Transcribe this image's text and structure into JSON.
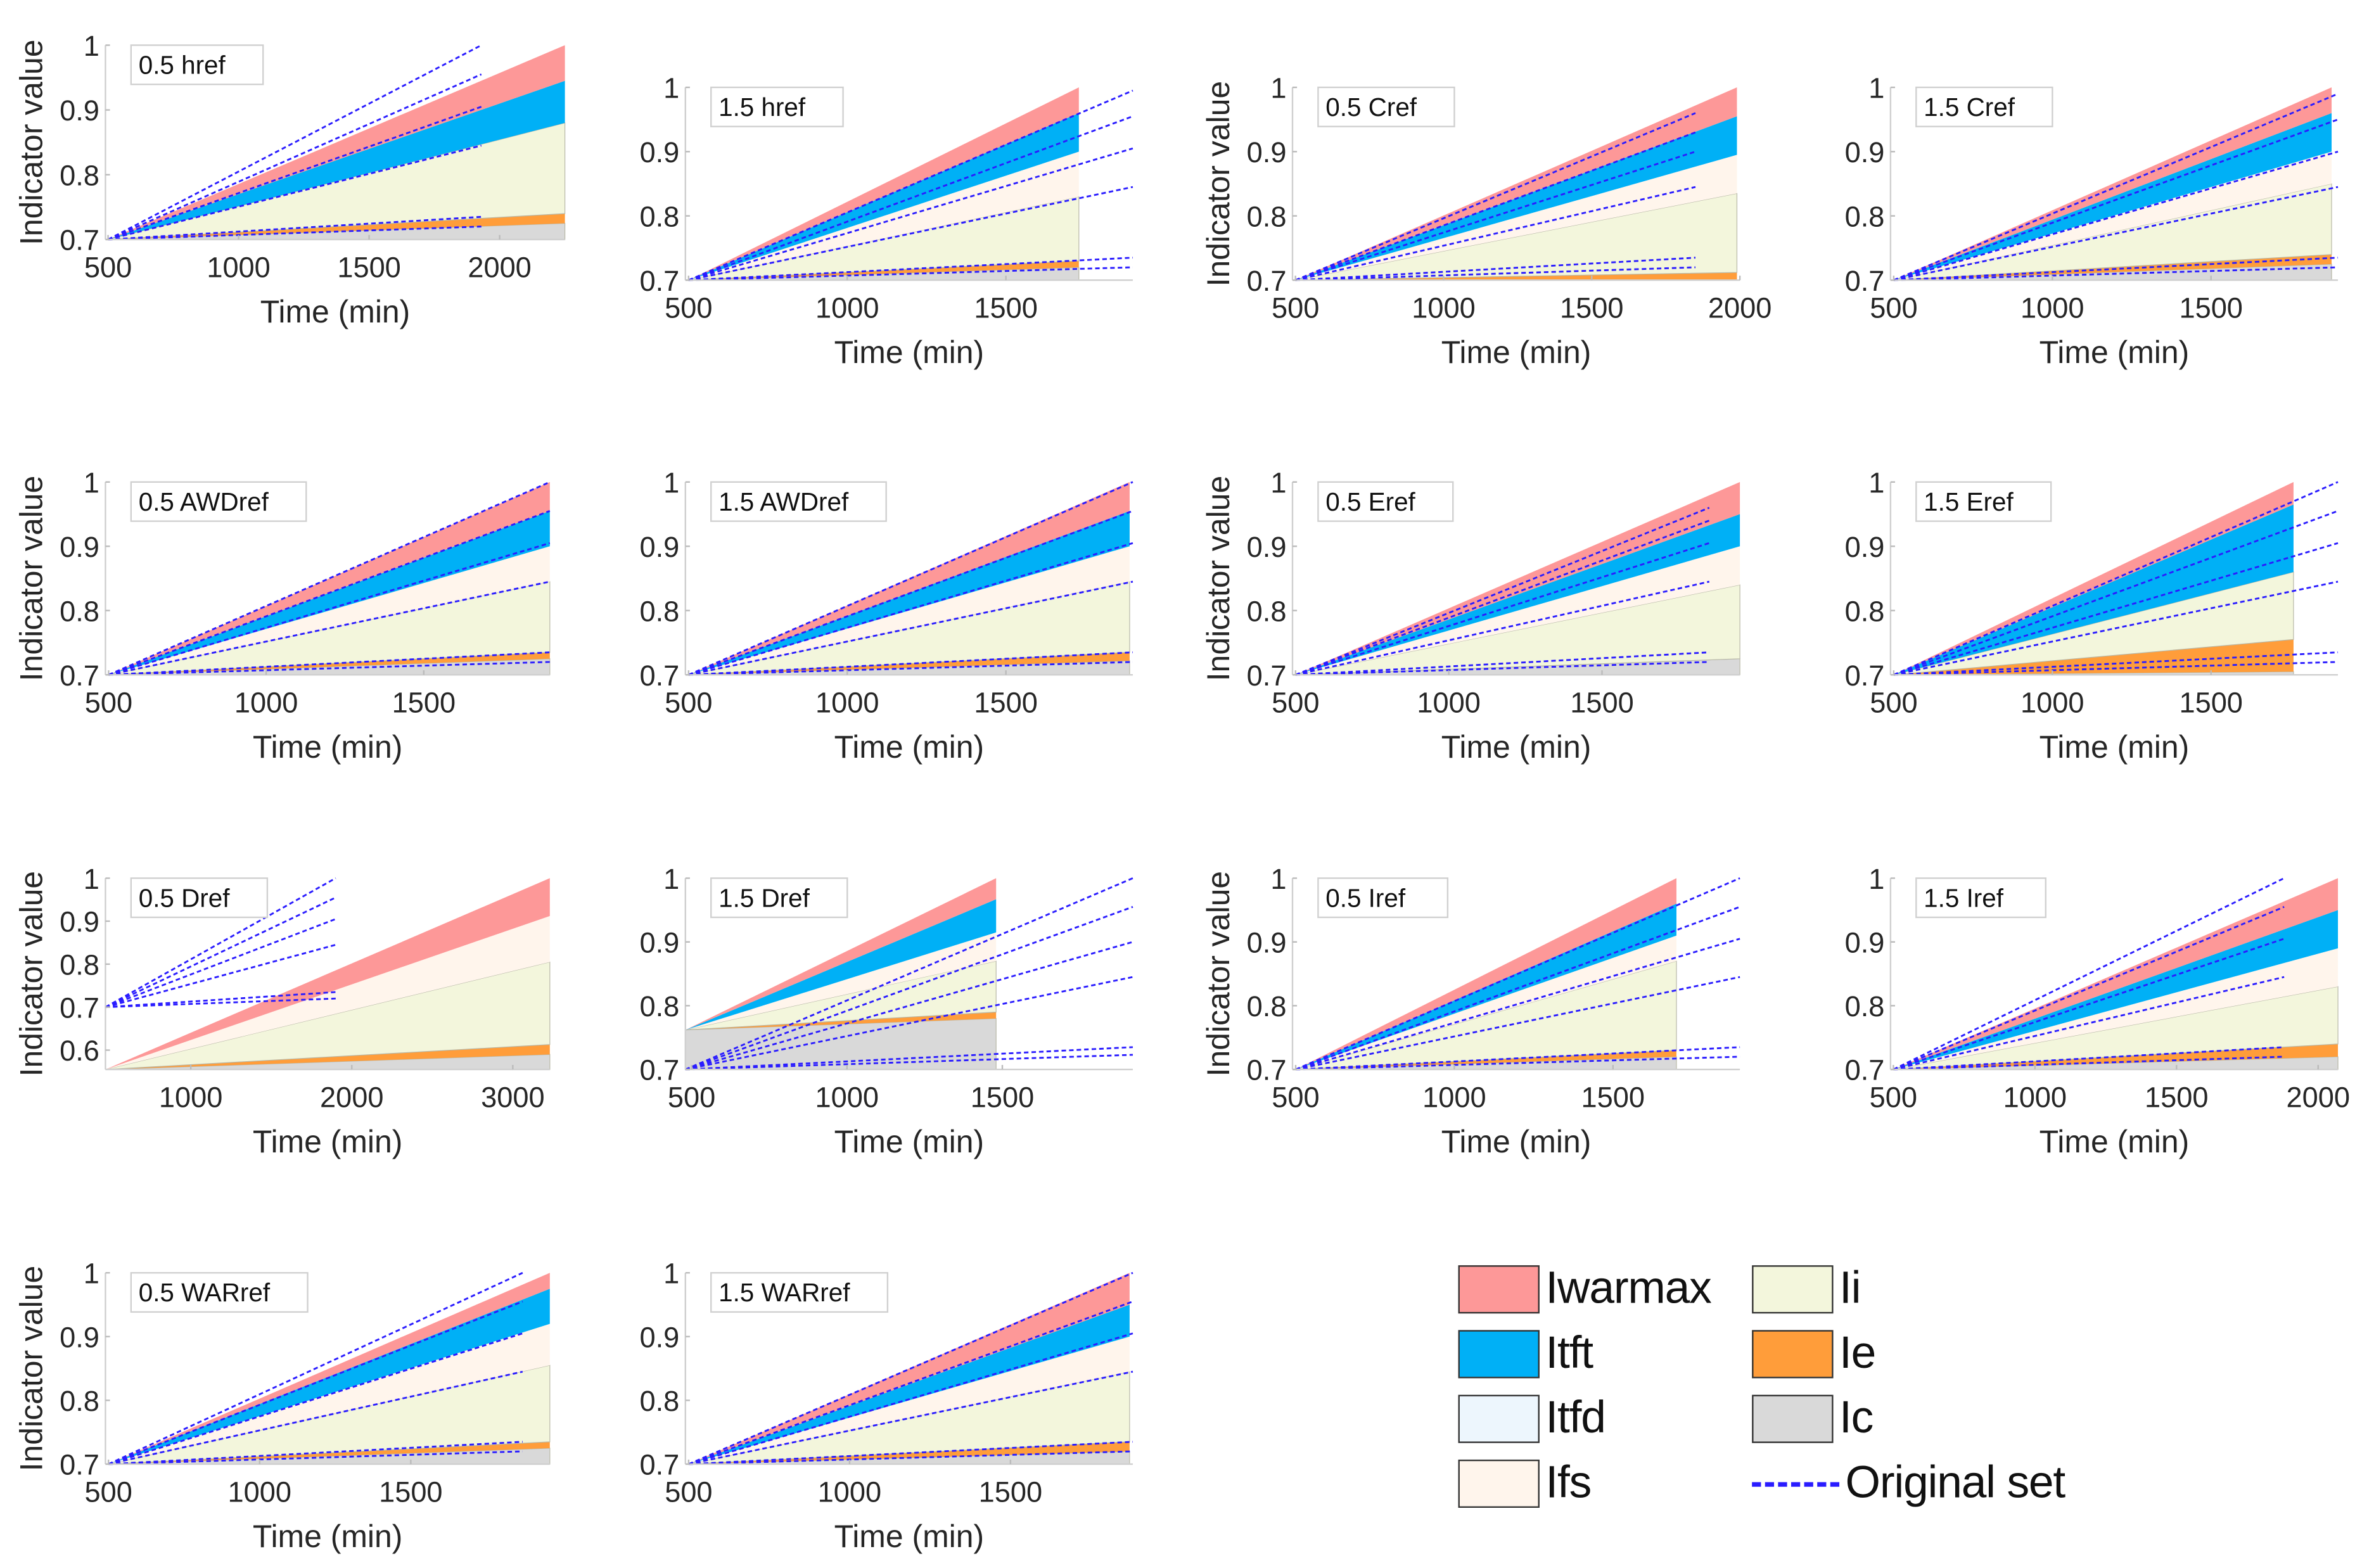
{
  "chart_data": {
    "type": "area",
    "title": "",
    "xlabel": "Time (min)",
    "ylabel": "Indicator value",
    "layers": [
      "Ic",
      "Ie",
      "Ii",
      "Ifs",
      "Itfd",
      "Itft",
      "Iwarmax"
    ],
    "colors": {
      "Iwarmax": "#fd9898",
      "Itft": "#00b0f6",
      "Itfd": "#edf6fd",
      "Ifs": "#fff5ec",
      "Ii": "#f3f6dc",
      "Ie": "#ff9d3a",
      "Ic": "#d9d9d9",
      "Original set": "#2a1cff"
    },
    "legend": {
      "placement": "bottom-right",
      "items": [
        {
          "label": "Iwarmax",
          "key": "Iwarmax"
        },
        {
          "label": "Itft",
          "key": "Itft"
        },
        {
          "label": "Itfd",
          "key": "Itfd"
        },
        {
          "label": "Ifs",
          "key": "Ifs"
        },
        {
          "label": "Ii",
          "key": "Ii"
        },
        {
          "label": "Ie",
          "key": "Ie"
        },
        {
          "label": "Ic",
          "key": "Ic"
        },
        {
          "label": "Original set",
          "key": "Original set"
        }
      ]
    },
    "panels": [
      {
        "title": "0.5 href",
        "show_ylabel": true,
        "xlim": [
          490,
          2250
        ],
        "ylim": [
          0.7,
          1
        ],
        "xticks": [
          "500",
          "1000",
          "1500",
          "2000"
        ],
        "yticks": [
          "0.7",
          "0.8",
          "0.9",
          "1"
        ],
        "start": [
          500,
          0.7
        ],
        "end_time": 2250,
        "tops": {
          "Ic": 0.725,
          "Ie": 0.74,
          "Ii": 0.88,
          "Ifs": 0.88,
          "Itfd": 0.88,
          "Itft": 0.945,
          "Iwarmax": 1.0
        },
        "original_set": {
          "start": [
            500,
            0.7
          ],
          "end_time": 1930,
          "end_values": [
            1.0,
            0.955,
            0.905,
            0.845,
            0.735,
            0.72
          ]
        }
      },
      {
        "title": "1.5 href",
        "show_ylabel": false,
        "xlim": [
          490,
          1900
        ],
        "ylim": [
          0.7,
          1
        ],
        "xticks": [
          "500",
          "1000",
          "1500"
        ],
        "yticks": [
          "0.7",
          "0.8",
          "0.9",
          "1"
        ],
        "start": [
          500,
          0.7
        ],
        "end_time": 1730,
        "tops": {
          "Ic": 0.72,
          "Ie": 0.73,
          "Ii": 0.83,
          "Ifs": 0.9,
          "Itfd": 0.9,
          "Itft": 0.96,
          "Iwarmax": 1.0
        },
        "original_set": {
          "start": [
            500,
            0.7
          ],
          "end_time": 1900,
          "end_values": [
            0.995,
            0.955,
            0.905,
            0.845,
            0.735,
            0.72
          ]
        }
      },
      {
        "title": "0.5 Cref",
        "show_ylabel": true,
        "xlim": [
          490,
          2000
        ],
        "ylim": [
          0.7,
          1
        ],
        "xticks": [
          "500",
          "1000",
          "1500",
          "2000"
        ],
        "yticks": [
          "0.7",
          "0.8",
          "0.9",
          "1"
        ],
        "start": [
          500,
          0.7
        ],
        "end_time": 1990,
        "tops": {
          "Ic": 0.7,
          "Ie": 0.712,
          "Ii": 0.835,
          "Ifs": 0.895,
          "Itfd": 0.895,
          "Itft": 0.955,
          "Iwarmax": 1.0
        },
        "original_set": {
          "start": [
            500,
            0.7
          ],
          "end_time": 1850,
          "end_values": [
            0.96,
            0.93,
            0.9,
            0.845,
            0.735,
            0.72
          ]
        }
      },
      {
        "title": "1.5 Cref",
        "show_ylabel": false,
        "xlim": [
          490,
          1900
        ],
        "ylim": [
          0.7,
          1
        ],
        "xticks": [
          "500",
          "1000",
          "1500"
        ],
        "yticks": [
          "0.7",
          "0.8",
          "0.9",
          "1"
        ],
        "start": [
          500,
          0.7
        ],
        "end_time": 1880,
        "tops": {
          "Ic": 0.725,
          "Ie": 0.74,
          "Ii": 0.85,
          "Ifs": 0.9,
          "Itfd": 0.9,
          "Itft": 0.96,
          "Iwarmax": 1.0
        },
        "original_set": {
          "start": [
            500,
            0.7
          ],
          "end_time": 1900,
          "end_values": [
            0.99,
            0.95,
            0.9,
            0.845,
            0.735,
            0.72
          ]
        }
      },
      {
        "title": "0.5 AWDref",
        "show_ylabel": true,
        "xlim": [
          490,
          1900
        ],
        "ylim": [
          0.7,
          1
        ],
        "xticks": [
          "500",
          "1000",
          "1500"
        ],
        "yticks": [
          "0.7",
          "0.8",
          "0.9",
          "1"
        ],
        "start": [
          500,
          0.7
        ],
        "end_time": 1900,
        "tops": {
          "Ic": 0.725,
          "Ie": 0.735,
          "Ii": 0.845,
          "Ifs": 0.9,
          "Itfd": 0.9,
          "Itft": 0.955,
          "Iwarmax": 1.0
        },
        "original_set": {
          "start": [
            500,
            0.7
          ],
          "end_time": 1900,
          "end_values": [
            1.0,
            0.955,
            0.905,
            0.845,
            0.735,
            0.72
          ]
        }
      },
      {
        "title": "1.5 AWDref",
        "show_ylabel": false,
        "xlim": [
          490,
          1900
        ],
        "ylim": [
          0.7,
          1
        ],
        "xticks": [
          "500",
          "1000",
          "1500"
        ],
        "yticks": [
          "0.7",
          "0.8",
          "0.9",
          "1"
        ],
        "start": [
          500,
          0.7
        ],
        "end_time": 1890,
        "tops": {
          "Ic": 0.722,
          "Ie": 0.735,
          "Ii": 0.845,
          "Ifs": 0.9,
          "Itfd": 0.9,
          "Itft": 0.955,
          "Iwarmax": 1.0
        },
        "original_set": {
          "start": [
            500,
            0.7
          ],
          "end_time": 1900,
          "end_values": [
            1.0,
            0.955,
            0.905,
            0.845,
            0.735,
            0.72
          ]
        }
      },
      {
        "title": "0.5 Eref",
        "show_ylabel": true,
        "xlim": [
          490,
          1950
        ],
        "ylim": [
          0.7,
          1
        ],
        "xticks": [
          "500",
          "1000",
          "1500"
        ],
        "yticks": [
          "0.7",
          "0.8",
          "0.9",
          "1"
        ],
        "start": [
          500,
          0.7
        ],
        "end_time": 1950,
        "tops": {
          "Ic": 0.725,
          "Ie": 0.725,
          "Ii": 0.84,
          "Ifs": 0.9,
          "Itfd": 0.9,
          "Itft": 0.95,
          "Iwarmax": 1.0
        },
        "original_set": {
          "start": [
            500,
            0.7
          ],
          "end_time": 1850,
          "end_values": [
            0.96,
            0.94,
            0.905,
            0.845,
            0.735,
            0.72
          ]
        }
      },
      {
        "title": "1.5 Eref",
        "show_ylabel": false,
        "xlim": [
          490,
          1900
        ],
        "ylim": [
          0.7,
          1
        ],
        "xticks": [
          "500",
          "1000",
          "1500"
        ],
        "yticks": [
          "0.7",
          "0.8",
          "0.9",
          "1"
        ],
        "start": [
          500,
          0.7
        ],
        "end_time": 1760,
        "tops": {
          "Ic": 0.705,
          "Ie": 0.755,
          "Ii": 0.86,
          "Ifs": 0.86,
          "Itfd": 0.86,
          "Itft": 0.965,
          "Iwarmax": 1.0
        },
        "original_set": {
          "start": [
            500,
            0.7
          ],
          "end_time": 1900,
          "end_values": [
            1.0,
            0.955,
            0.905,
            0.845,
            0.735,
            0.72
          ]
        }
      },
      {
        "title": "0.5 Dref",
        "show_ylabel": true,
        "xlim": [
          470,
          3230
        ],
        "ylim": [
          0.555,
          1
        ],
        "xticks": [
          "1000",
          "2000",
          "3000"
        ],
        "yticks": [
          "0.6",
          "0.7",
          "0.8",
          "0.9",
          "1"
        ],
        "start": [
          470,
          0.555
        ],
        "end_time": 3230,
        "tops": {
          "Ic": 0.59,
          "Ie": 0.613,
          "Ii": 0.805,
          "Ifs": 0.912,
          "Itfd": 0.912,
          "Itft": 0.912,
          "Iwarmax": 1.0
        },
        "original_set": {
          "start": [
            470,
            0.7
          ],
          "end_time": 1900,
          "end_values": [
            1.0,
            0.955,
            0.905,
            0.845,
            0.735,
            0.72
          ]
        }
      },
      {
        "title": "1.5 Dref",
        "show_ylabel": false,
        "xlim": [
          480,
          1920
        ],
        "ylim": [
          0.7,
          1
        ],
        "xticks": [
          "500",
          "1000",
          "1500"
        ],
        "yticks": [
          "0.7",
          "0.8",
          "0.9",
          "1"
        ],
        "start": [
          480,
          0.762
        ],
        "end_time": 1480,
        "tops": {
          "Ic": 0.78,
          "Ie": 0.79,
          "Ii": 0.87,
          "Ifs": 0.915,
          "Itfd": 0.915,
          "Itft": 0.967,
          "Iwarmax": 1.0
        },
        "original_set": {
          "start": [
            480,
            0.7
          ],
          "end_time": 1920,
          "end_values": [
            1.0,
            0.955,
            0.9,
            0.845,
            0.735,
            0.723
          ]
        }
      },
      {
        "title": "0.5 Iref",
        "show_ylabel": true,
        "xlim": [
          490,
          1900
        ],
        "ylim": [
          0.7,
          1
        ],
        "xticks": [
          "500",
          "1000",
          "1500"
        ],
        "yticks": [
          "0.7",
          "0.8",
          "0.9",
          "1"
        ],
        "start": [
          500,
          0.7
        ],
        "end_time": 1700,
        "tops": {
          "Ic": 0.72,
          "Ie": 0.73,
          "Ii": 0.87,
          "Ifs": 0.91,
          "Itfd": 0.91,
          "Itft": 0.96,
          "Iwarmax": 1.0
        },
        "original_set": {
          "start": [
            500,
            0.7
          ],
          "end_time": 1900,
          "end_values": [
            1.0,
            0.955,
            0.905,
            0.845,
            0.735,
            0.72
          ]
        }
      },
      {
        "title": "1.5 Iref",
        "show_ylabel": false,
        "xlim": [
          490,
          2070
        ],
        "ylim": [
          0.7,
          1
        ],
        "xticks": [
          "500",
          "1000",
          "1500",
          "2000"
        ],
        "yticks": [
          "0.7",
          "0.8",
          "0.9",
          "1"
        ],
        "start": [
          500,
          0.7
        ],
        "end_time": 2070,
        "tops": {
          "Ic": 0.72,
          "Ie": 0.74,
          "Ii": 0.83,
          "Ifs": 0.89,
          "Itfd": 0.89,
          "Itft": 0.95,
          "Iwarmax": 1.0
        },
        "original_set": {
          "start": [
            500,
            0.7
          ],
          "end_time": 1880,
          "end_values": [
            1.0,
            0.955,
            0.905,
            0.845,
            0.735,
            0.72
          ]
        }
      },
      {
        "title": "0.5 WARref",
        "show_ylabel": true,
        "xlim": [
          490,
          1960
        ],
        "ylim": [
          0.7,
          1
        ],
        "xticks": [
          "500",
          "1000",
          "1500"
        ],
        "yticks": [
          "0.7",
          "0.8",
          "0.9",
          "1"
        ],
        "start": [
          500,
          0.7
        ],
        "end_time": 1960,
        "tops": {
          "Ic": 0.725,
          "Ie": 0.735,
          "Ii": 0.855,
          "Ifs": 0.92,
          "Itfd": 0.92,
          "Itft": 0.975,
          "Iwarmax": 1.0
        },
        "original_set": {
          "start": [
            500,
            0.7
          ],
          "end_time": 1870,
          "end_values": [
            1.0,
            0.955,
            0.905,
            0.845,
            0.735,
            0.72
          ]
        }
      },
      {
        "title": "1.5 WARref",
        "show_ylabel": false,
        "xlim": [
          490,
          1880
        ],
        "ylim": [
          0.7,
          1
        ],
        "xticks": [
          "500",
          "1000",
          "1500"
        ],
        "yticks": [
          "0.7",
          "0.8",
          "0.9",
          "1"
        ],
        "start": [
          500,
          0.7
        ],
        "end_time": 1870,
        "tops": {
          "Ic": 0.72,
          "Ie": 0.735,
          "Ii": 0.845,
          "Ifs": 0.9,
          "Itfd": 0.9,
          "Itft": 0.95,
          "Iwarmax": 1.0
        },
        "original_set": {
          "start": [
            500,
            0.7
          ],
          "end_time": 1880,
          "end_values": [
            1.0,
            0.955,
            0.905,
            0.845,
            0.735,
            0.72
          ]
        }
      }
    ]
  }
}
